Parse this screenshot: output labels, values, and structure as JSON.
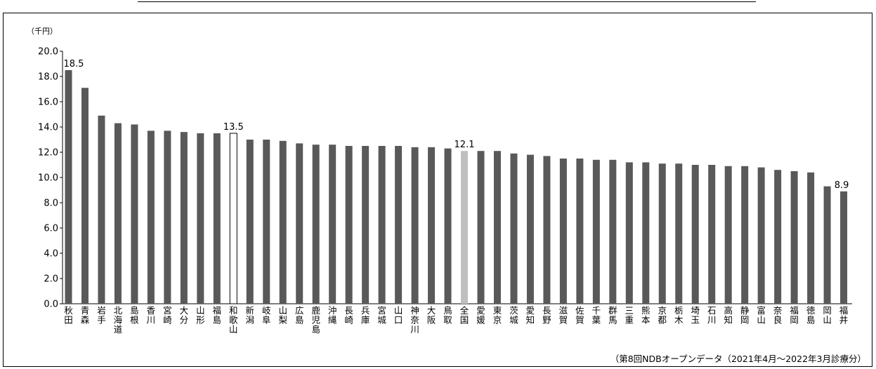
{
  "chart_data": {
    "type": "bar",
    "ylabel": "（千円）",
    "ylim": [
      0,
      20
    ],
    "yticks": [
      "0.0",
      "2.0",
      "4.0",
      "6.0",
      "8.0",
      "10.0",
      "12.0",
      "14.0",
      "16.0",
      "18.0",
      "20.0"
    ],
    "grid": false,
    "legend": "none",
    "categories": [
      "秋田",
      "青森",
      "岩手",
      "北海道",
      "島根",
      "香川",
      "宮崎",
      "大分",
      "山形",
      "福島",
      "和歌山",
      "新潟",
      "岐阜",
      "山梨",
      "広島",
      "鹿児島",
      "沖縄",
      "長崎",
      "兵庫",
      "宮城",
      "山口",
      "神奈川",
      "大阪",
      "鳥取",
      "全国",
      "愛媛",
      "東京",
      "茨城",
      "愛知",
      "長野",
      "滋賀",
      "佐賀",
      "千葉",
      "群馬",
      "三重",
      "熊本",
      "京都",
      "栃木",
      "埼玉",
      "石川",
      "高知",
      "静岡",
      "富山",
      "奈良",
      "福岡",
      "徳島",
      "岡山",
      "福井"
    ],
    "values": [
      18.5,
      17.1,
      14.9,
      14.3,
      14.2,
      13.7,
      13.7,
      13.6,
      13.5,
      13.5,
      13.5,
      13.0,
      13.0,
      12.9,
      12.7,
      12.6,
      12.6,
      12.5,
      12.5,
      12.5,
      12.5,
      12.4,
      12.4,
      12.3,
      12.1,
      12.1,
      12.1,
      11.9,
      11.8,
      11.7,
      11.5,
      11.5,
      11.4,
      11.4,
      11.2,
      11.2,
      11.1,
      11.1,
      11.0,
      11.0,
      10.9,
      10.9,
      10.8,
      10.6,
      10.5,
      10.4,
      9.3,
      8.9
    ],
    "data_labels": [
      {
        "category": "秋田",
        "text": "18.5"
      },
      {
        "category": "和歌山",
        "text": "13.5"
      },
      {
        "category": "全国",
        "text": "12.1"
      },
      {
        "category": "福井",
        "text": "8.9"
      }
    ],
    "bar_colors": {
      "default": "#595959",
      "全国": "#bfbfbf",
      "和歌山": "#ffffff"
    },
    "outline_color": "#000000"
  },
  "footnote": "（第8回NDBオープンデータ（2021年4月～2022年3月診療分）"
}
